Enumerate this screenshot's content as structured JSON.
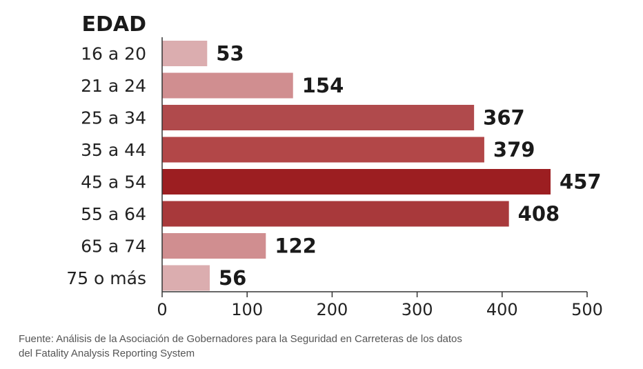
{
  "chart_data": {
    "type": "bar",
    "orientation": "horizontal",
    "title": "EDAD",
    "categories": [
      "16 a 20",
      "21 a 24",
      "25 a 34",
      "35 a 44",
      "45 a 54",
      "55 a 64",
      "65 a 74",
      "75 o más"
    ],
    "values": [
      53,
      154,
      367,
      379,
      457,
      408,
      122,
      56
    ],
    "value_labels": [
      "53",
      "154",
      "367",
      "379",
      "457",
      "408",
      "122",
      "56"
    ],
    "xlim": [
      0,
      500
    ],
    "xticks": [
      0,
      100,
      200,
      300,
      400,
      500
    ],
    "xtick_labels": [
      "0",
      "100",
      "200",
      "300",
      "400",
      "500"
    ],
    "grid": false,
    "colors": [
      "#dbadaf",
      "#d08e90",
      "#b04a4c",
      "#b24748",
      "#9c1e21",
      "#a8393b",
      "#d08e90",
      "#dbadaf"
    ]
  },
  "source": {
    "line1": "Fuente: Análisis de la Asociación de Gobernadores para la Seguridad en Carreteras de los datos",
    "line2": "del Fatality Analysis Reporting System"
  }
}
